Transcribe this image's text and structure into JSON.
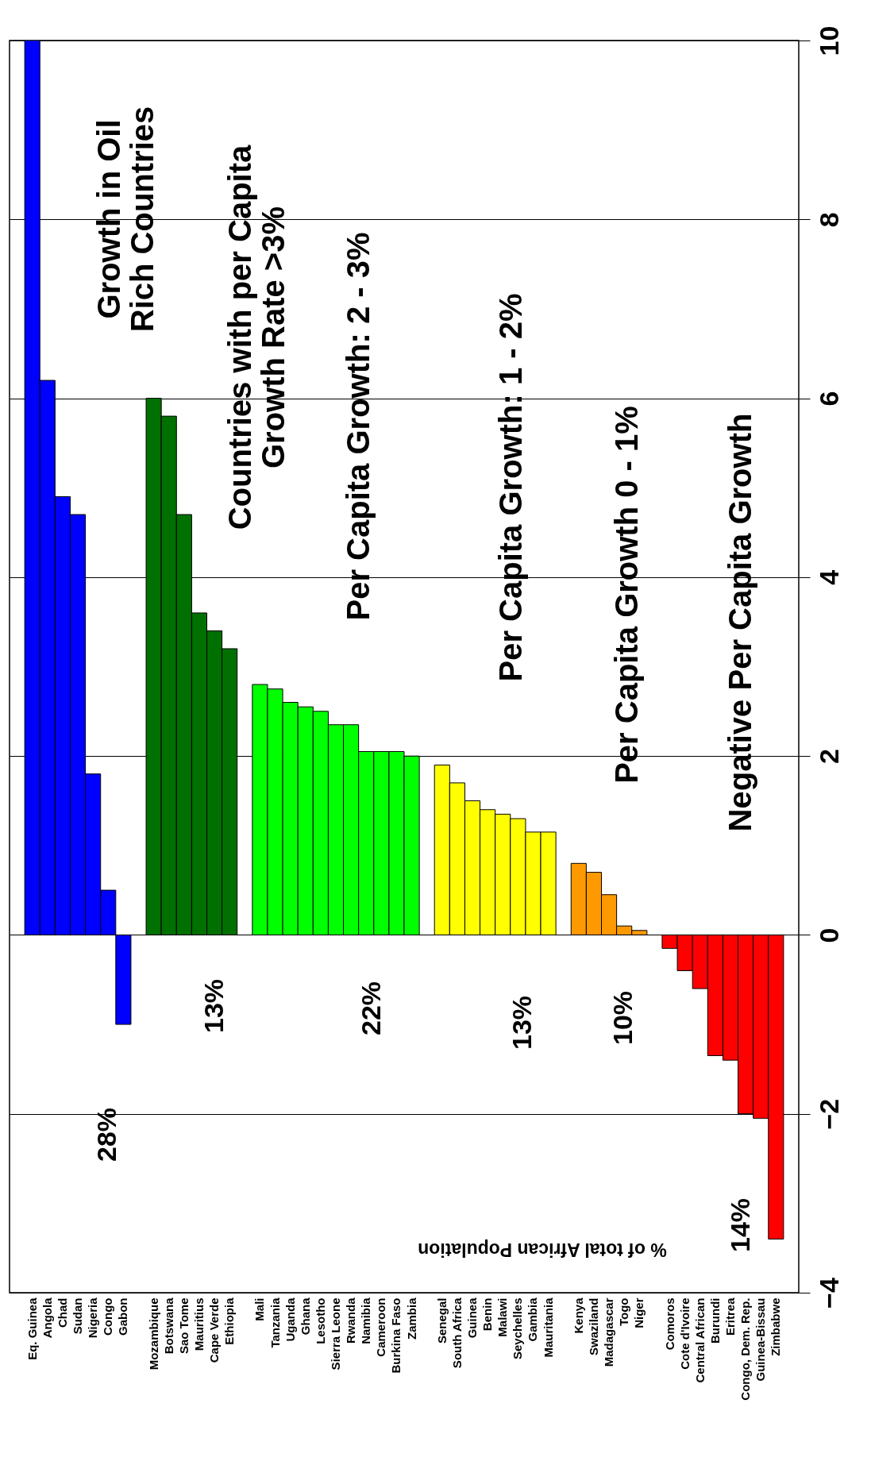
{
  "chart_data": {
    "type": "bar",
    "categories": [
      "Eq. Guinea",
      "Angola",
      "Chad",
      "Sudan",
      "Nigeria",
      "Congo",
      "Gabon",
      null,
      "Mozambique",
      "Botswana",
      "Sao Tome",
      "Mauritius",
      "Cape Verde",
      "Ethiopia",
      null,
      "Mali",
      "Tanzania",
      "Uganda",
      "Ghana",
      "Lesotho",
      "Sierra Leone",
      "Rwanda",
      "Namibia",
      "Cameroon",
      "Burkina Faso",
      "Zambia",
      null,
      "Senegal",
      "South Africa",
      "Guinea",
      "Benin",
      "Malawi",
      "Seychelles",
      "Gambia",
      "Mauritania",
      null,
      "Kenya",
      "Swaziland",
      "Madagascar",
      "Togo",
      "Niger",
      null,
      "Comoros",
      "Cote d'Ivoire",
      "Central African",
      "Burundi",
      "Eritrea",
      "Congo, Dem. Rep.",
      "Guinea-Bissau",
      "Zimbabwe"
    ],
    "values": [
      10,
      6.2,
      4.9,
      4.7,
      1.8,
      0.5,
      -1,
      null,
      6,
      5.8,
      4.7,
      3.6,
      3.4,
      3.2,
      null,
      2.8,
      2.75,
      2.6,
      2.55,
      2.5,
      2.35,
      2.35,
      2.05,
      2.05,
      2.05,
      2,
      null,
      1.9,
      1.7,
      1.5,
      1.4,
      1.35,
      1.3,
      1.15,
      1.15,
      null,
      0.8,
      0.7,
      0.45,
      0.1,
      0.05,
      null,
      -0.15,
      -0.4,
      -0.6,
      -1.35,
      -1.4,
      -2,
      -2.05,
      -3.4
    ],
    "colors": [
      "#0000ff",
      "#0000ff",
      "#0000ff",
      "#0000ff",
      "#0000ff",
      "#0000ff",
      "#0000ff",
      null,
      "#007000",
      "#007000",
      "#007000",
      "#007000",
      "#007000",
      "#007000",
      null,
      "#00ff00",
      "#00ff00",
      "#00ff00",
      "#00ff00",
      "#00ff00",
      "#00ff00",
      "#00ff00",
      "#00ff00",
      "#00ff00",
      "#00ff00",
      "#00ff00",
      null,
      "#ffff00",
      "#ffff00",
      "#ffff00",
      "#ffff00",
      "#ffff00",
      "#ffff00",
      "#ffff00",
      "#ffff00",
      null,
      "#ff9900",
      "#ff9900",
      "#ff9900",
      "#ff9900",
      "#ff9900",
      null,
      "#ff0000",
      "#ff0000",
      "#ff0000",
      "#ff0000",
      "#ff0000",
      "#ff0000",
      "#ff0000",
      "#ff0000"
    ],
    "ylim": [
      -4,
      10
    ],
    "yticks": [
      -4,
      -2,
      0,
      2,
      4,
      6,
      8,
      10
    ],
    "grid": "y",
    "annotations": [
      "Growth in Oil\nRich Countries",
      "Countries with per Capita\nGrowth Rate >3%",
      "Per Capita Growth: 2 - 3%",
      "Per Capita Growth: 1 - 2%",
      "Per Capita Growth 0 - 1%",
      "Negative Per Capita Growth",
      "28%",
      "13%",
      "22%",
      "13%",
      "10%",
      "14%",
      "% of total African Population"
    ]
  }
}
